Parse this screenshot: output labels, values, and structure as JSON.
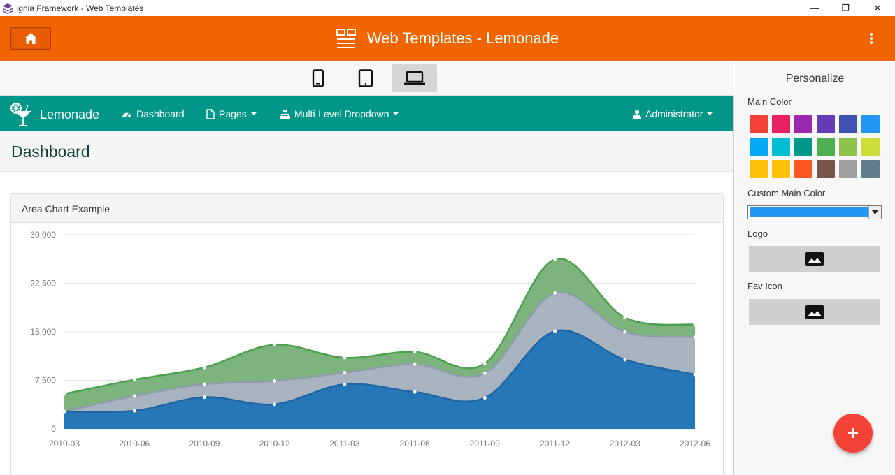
{
  "window": {
    "title": "Ignia Framework - Web Templates",
    "min": "—",
    "max": "❐",
    "close": "✕"
  },
  "header": {
    "title": "Web Templates - Lemonade"
  },
  "devices": [
    "phone",
    "tablet",
    "laptop"
  ],
  "navbar": {
    "brand": "Lemonade",
    "items": [
      {
        "label": "Dashboard"
      },
      {
        "label": "Pages"
      },
      {
        "label": "Multi-Level Dropdown"
      }
    ],
    "user": "Administrator"
  },
  "page": {
    "title": "Dashboard"
  },
  "panel": {
    "title": "Area Chart Example"
  },
  "chart_data": {
    "type": "area",
    "stacked": true,
    "categories": [
      "2010-03",
      "2010-06",
      "2010-09",
      "2010-12",
      "2011-03",
      "2011-06",
      "2011-09",
      "2011-12",
      "2012-03",
      "2012-06"
    ],
    "yticks": [
      "0",
      "7,500",
      "15,000",
      "22,500",
      "30,000"
    ],
    "ylim": [
      0,
      30000
    ],
    "series": [
      {
        "color": "#2677b8",
        "values": [
          2700,
          2800,
          4900,
          3800,
          6900,
          5700,
          4800,
          15100,
          10700,
          8400
        ]
      },
      {
        "color": "#a7b3be",
        "values": [
          0,
          2300,
          2000,
          3600,
          1800,
          4300,
          3800,
          5900,
          4300,
          5800
        ]
      },
      {
        "color": "#7db47d",
        "values": [
          2700,
          2500,
          2600,
          5600,
          2300,
          1900,
          1500,
          5200,
          2200,
          1900
        ]
      }
    ],
    "grid": true
  },
  "side": {
    "title": "Personalize",
    "main_color_label": "Main Color",
    "swatches": [
      "#f44336",
      "#e91e63",
      "#9c27b0",
      "#673ab7",
      "#3f51b5",
      "#2196f3",
      "#03a9f4",
      "#00bcd4",
      "#009688",
      "#4caf50",
      "#8bc34a",
      "#cddc39",
      "#ffc107",
      "#ffc107",
      "#ff5722",
      "#795548",
      "#9e9e9e",
      "#607d8b"
    ],
    "custom_label": "Custom Main Color",
    "custom_color": "#2196f3",
    "logo_label": "Logo",
    "fav_label": "Fav Icon"
  },
  "colors": {
    "accent": "#f06500",
    "nav": "#009688",
    "fab": "#f44336"
  }
}
